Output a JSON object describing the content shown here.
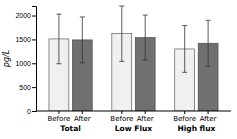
{
  "chart_data": {
    "type": "bar",
    "categories": [
      "Total",
      "Low Flux",
      "High flux"
    ],
    "series": [
      {
        "name": "Before",
        "color": "#f0f0f0",
        "values": [
          1510,
          1620,
          1300
        ],
        "errors": [
          520,
          580,
          490
        ]
      },
      {
        "name": "After",
        "color": "#707070",
        "values": [
          1490,
          1540,
          1420
        ],
        "errors": [
          480,
          470,
          480
        ]
      }
    ],
    "y_label": "pg/L",
    "ylim": [
      0,
      2200
    ],
    "yticks": [
      0,
      500,
      1000,
      1500,
      2000
    ],
    "grid": false
  }
}
